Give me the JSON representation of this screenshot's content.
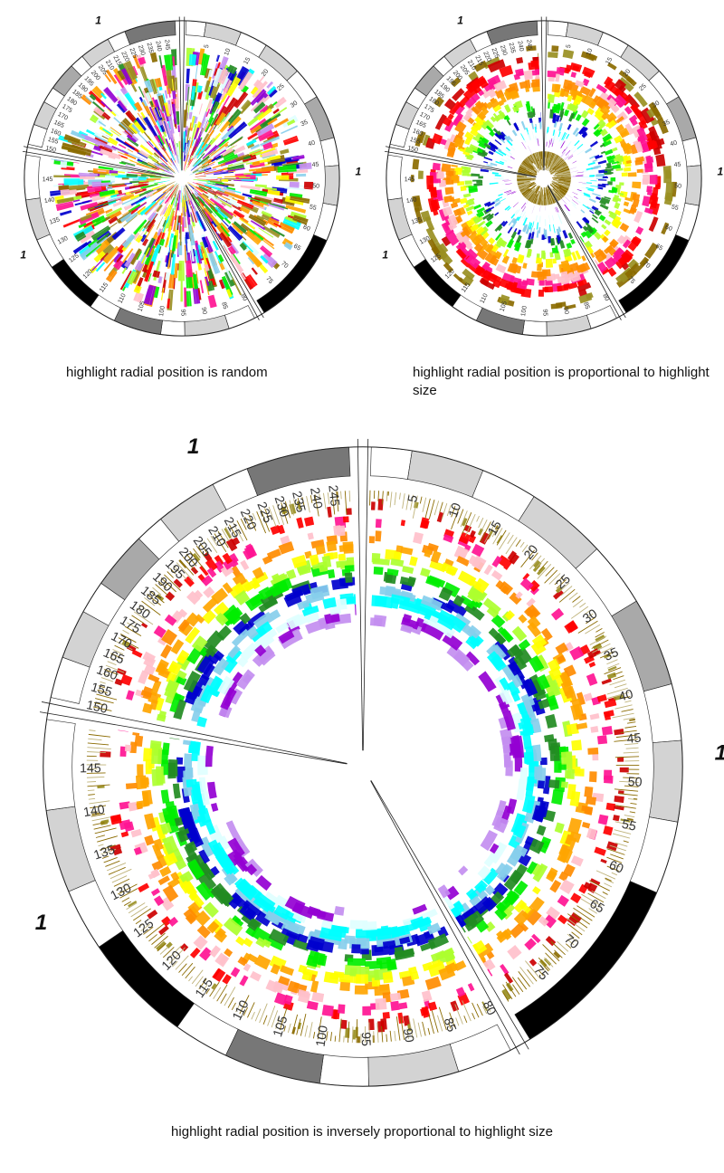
{
  "captions": {
    "random": "highlight radial position is random",
    "proportional": "highlight radial position is proportional to highlight size",
    "inverse": "highlight radial position is inversely proportional to highlight size"
  },
  "chromosome_label": "1",
  "position_ticks": [
    "5",
    "10",
    "15",
    "20",
    "25",
    "30",
    "35",
    "40",
    "45",
    "50",
    "55",
    "60",
    "65",
    "70",
    "75",
    "80",
    "85",
    "90",
    "95",
    "100",
    "105",
    "110",
    "115",
    "120",
    "125",
    "130",
    "135",
    "140",
    "145",
    "150",
    "155",
    "160",
    "165",
    "170",
    "175",
    "180",
    "185",
    "190",
    "195",
    "200",
    "205",
    "210",
    "215",
    "220",
    "225",
    "230",
    "235",
    "240",
    "245"
  ],
  "colors": {
    "highlight_palette": [
      "#8b6b00",
      "#998f22",
      "#cc0000",
      "#ff0000",
      "#ff1493",
      "#ffc0cb",
      "#ff8c00",
      "#ffa500",
      "#ffff00",
      "#adff2f",
      "#00ee00",
      "#228b22",
      "#0000cd",
      "#87ceeb",
      "#00ffff",
      "#e0ffff",
      "#9400d3",
      "#c38ef0"
    ],
    "ideogram_bands": [
      "#ffffff",
      "#d3d3d3",
      "#a9a9a9",
      "#777777",
      "#000000"
    ]
  }
}
